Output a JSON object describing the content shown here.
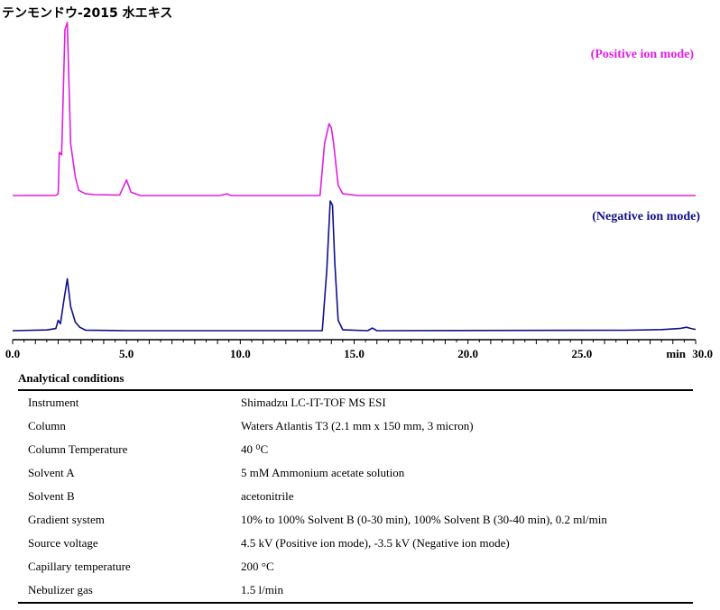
{
  "title": "テンモンドウ-2015 水エキス",
  "chart_data": {
    "type": "line",
    "series": [
      {
        "name": "(Positive ion mode)",
        "color": "#e020e0",
        "points": [
          [
            0,
            0
          ],
          [
            1.9,
            0.2
          ],
          [
            2.0,
            2.0
          ],
          [
            2.05,
            50
          ],
          [
            2.15,
            47
          ],
          [
            2.3,
            192
          ],
          [
            2.4,
            200
          ],
          [
            2.55,
            60
          ],
          [
            2.75,
            22
          ],
          [
            2.9,
            6
          ],
          [
            3.2,
            2
          ],
          [
            3.6,
            1
          ],
          [
            4.7,
            0.5
          ],
          [
            5.0,
            18
          ],
          [
            5.2,
            4
          ],
          [
            5.6,
            0
          ],
          [
            9.1,
            0
          ],
          [
            9.4,
            2
          ],
          [
            9.6,
            0
          ],
          [
            13.5,
            0
          ],
          [
            13.7,
            60
          ],
          [
            13.9,
            83
          ],
          [
            14.0,
            78
          ],
          [
            14.1,
            60
          ],
          [
            14.3,
            12
          ],
          [
            14.5,
            2
          ],
          [
            15.2,
            0
          ],
          [
            30,
            0
          ]
        ]
      },
      {
        "name": "(Negative ion mode)",
        "color": "#10108a",
        "points": [
          [
            0,
            0
          ],
          [
            1.5,
            0.8
          ],
          [
            1.9,
            2.5
          ],
          [
            2.0,
            12
          ],
          [
            2.1,
            8
          ],
          [
            2.25,
            35
          ],
          [
            2.4,
            60
          ],
          [
            2.55,
            28
          ],
          [
            2.75,
            10
          ],
          [
            2.95,
            4
          ],
          [
            3.2,
            0.6
          ],
          [
            5,
            0
          ],
          [
            13.6,
            0
          ],
          [
            13.8,
            70
          ],
          [
            13.95,
            150
          ],
          [
            14.05,
            145
          ],
          [
            14.15,
            78
          ],
          [
            14.3,
            12
          ],
          [
            14.5,
            1
          ],
          [
            15.6,
            0
          ],
          [
            15.8,
            3
          ],
          [
            16.0,
            0
          ],
          [
            27,
            0.5
          ],
          [
            28.5,
            1.2
          ],
          [
            29.3,
            2.5
          ],
          [
            29.6,
            4
          ],
          [
            29.8,
            2.5
          ],
          [
            30,
            1.5
          ]
        ]
      }
    ],
    "x_ticks": [
      "0.0",
      "5.0",
      "10.0",
      "15.0",
      "20.0",
      "25.0",
      "30.0"
    ],
    "x_tick_values": [
      0,
      5,
      10,
      15,
      20,
      25,
      30
    ],
    "x_unit_label": "min",
    "xlim": [
      0,
      30
    ],
    "grid": false
  },
  "conditions": {
    "title": "Analytical conditions",
    "rows": [
      {
        "param": "Instrument",
        "value": "Shimadzu LC-IT-TOF MS ESI"
      },
      {
        "param": "Column",
        "value": "Waters Atlantis T3 (2.1 mm x 150 mm, 3 micron)"
      },
      {
        "param": "Column Temperature",
        "value": "40 ⁰C"
      },
      {
        "param": "Solvent A",
        "value": "5 mM Ammonium acetate solution"
      },
      {
        "param": "Solvent B",
        "value": "acetonitrile"
      },
      {
        "param": "Gradient system",
        "value": "10% to 100% Solvent B (0-30 min), 100% Solvent B (30-40 min), 0.2 ml/min"
      },
      {
        "param": "Source voltage",
        "value": "4.5 kV (Positive ion mode), -3.5 kV (Negative ion mode)"
      },
      {
        "param": "Capillary temperature",
        "value": "200 °C"
      },
      {
        "param": "Nebulizer gas",
        "value": "1.5 l/min"
      }
    ]
  }
}
